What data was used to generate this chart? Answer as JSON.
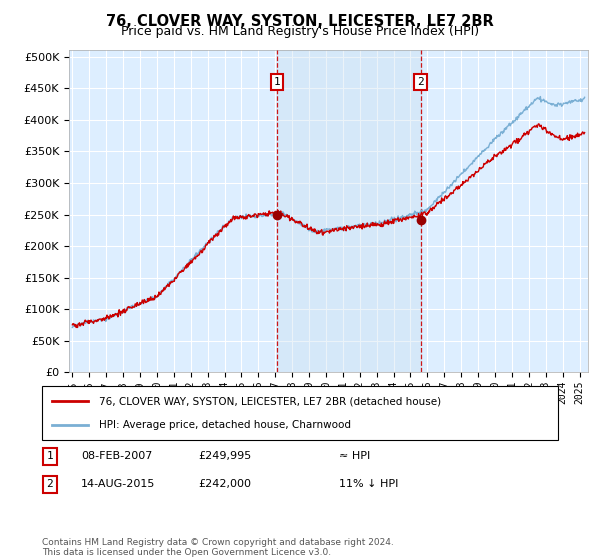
{
  "title": "76, CLOVER WAY, SYSTON, LEICESTER, LE7 2BR",
  "subtitle": "Price paid vs. HM Land Registry's House Price Index (HPI)",
  "legend_line1": "76, CLOVER WAY, SYSTON, LEICESTER, LE7 2BR (detached house)",
  "legend_line2": "HPI: Average price, detached house, Charnwood",
  "footer": "Contains HM Land Registry data © Crown copyright and database right 2024.\nThis data is licensed under the Open Government Licence v3.0.",
  "sale1_date": "08-FEB-2007",
  "sale1_price": "£249,995",
  "sale1_label": "≈ HPI",
  "sale2_date": "14-AUG-2015",
  "sale2_price": "£242,000",
  "sale2_label": "11% ↓ HPI",
  "hpi_color": "#7aafd4",
  "price_color": "#cc0000",
  "sale_marker_color": "#990000",
  "background_color": "#ddeeff",
  "shading_color": "#c8ddf0",
  "ylim_min": 0,
  "ylim_max": 510000,
  "yticks": [
    0,
    50000,
    100000,
    150000,
    200000,
    250000,
    300000,
    350000,
    400000,
    450000,
    500000
  ],
  "xlim_min": 1994.8,
  "xlim_max": 2025.5,
  "sale1_x": 2007.1,
  "sale2_x": 2015.6
}
